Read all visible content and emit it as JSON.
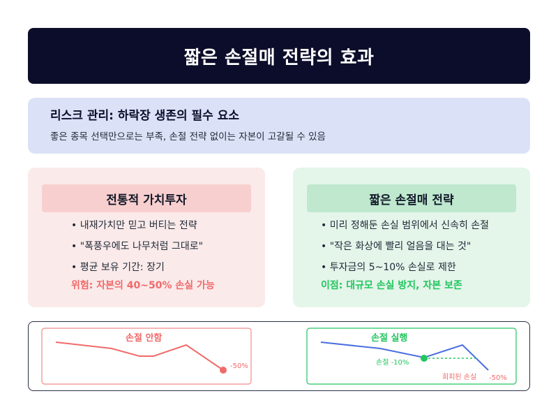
{
  "header": {
    "title": "짧은 손절매 전략의 효과"
  },
  "risk": {
    "title": "리스크 관리: 하락장 생존의 필수 요소",
    "subtitle": "좋은 종목 선택만으로는 부족, 손절 전략 없이는 자본이 고갈될 수 있음"
  },
  "traditional": {
    "title": "전통적 가치투자",
    "bullets": [
      "내재가치만 믿고 버티는 전략",
      "\"폭풍우에도 나무처럼 그대로\"",
      "평균 보유 기간: 장기"
    ],
    "highlight": "위험: 자본의 40~50% 손실 가능"
  },
  "stoploss": {
    "title": "짧은 손절매 전략",
    "bullets": [
      "미리 정해둔 손실 범위에서 신속히 손절",
      "\"작은 화상에 빨리 얼음을 대는 것\"",
      "투자금의 5~10% 손실로 제한"
    ],
    "highlight": "이점: 대규모 손실 방지, 자본 보존"
  },
  "charts": {
    "no_stop": {
      "title": "손절 안함",
      "end_label": "-50%",
      "color": "#f06a6a"
    },
    "with_stop": {
      "title": "손절 실행",
      "stop_label": "손절 -10%",
      "avoided_label": "회피된 손실",
      "avoided_value": "-50%",
      "line_color": "#4a6ee0",
      "stop_color": "#22c55e",
      "avoided_color": "#f06a6a"
    }
  }
}
